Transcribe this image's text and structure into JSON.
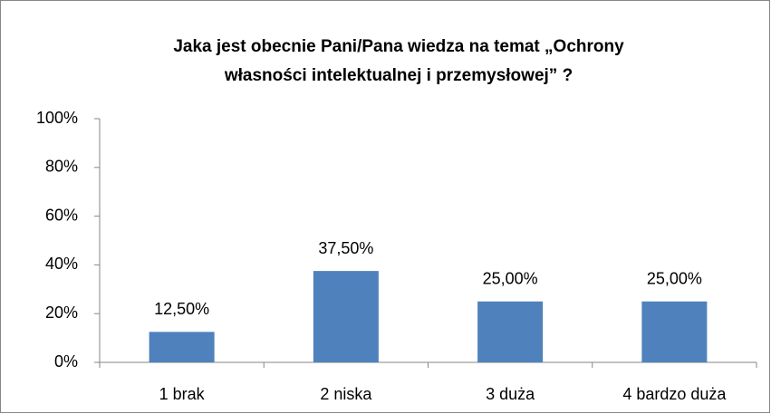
{
  "chart_data": {
    "type": "bar",
    "title": [
      "Jaka jest obecnie Pani/Pana wiedza na temat „Ochrony",
      "własności intelektualnej i przemysłowej” ?"
    ],
    "categories": [
      "1 brak",
      "2 niska",
      "3 duża",
      "4 bardzo duża"
    ],
    "values": [
      12.5,
      37.5,
      25,
      25
    ],
    "value_labels": [
      "12,50%",
      "37,50%",
      "25,00%",
      "25,00%"
    ],
    "color": "#4f81bd",
    "ylim": [
      0,
      100
    ],
    "yticks": [
      {
        "value": 0,
        "label": "0%"
      },
      {
        "value": 20,
        "label": "20%"
      },
      {
        "value": 40,
        "label": "40%"
      },
      {
        "value": 60,
        "label": "60%"
      },
      {
        "value": 80,
        "label": "80%"
      },
      {
        "value": 100,
        "label": "100%"
      }
    ],
    "grid": false
  }
}
